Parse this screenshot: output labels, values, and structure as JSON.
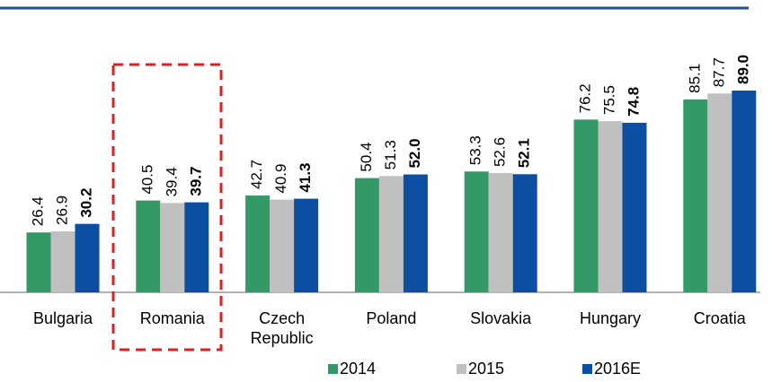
{
  "chart_data": {
    "type": "bar",
    "categories": [
      "Bulgaria",
      "Romania",
      "Czech Republic",
      "Poland",
      "Slovakia",
      "Hungary",
      "Croatia"
    ],
    "series": [
      {
        "name": "2014",
        "color": "#339966",
        "values": [
          26.4,
          40.5,
          42.7,
          50.4,
          53.3,
          76.2,
          85.1
        ],
        "value_labels": [
          "26.4",
          "40.5",
          "42.7",
          "50.4",
          "53.3",
          "76.2",
          "85.1"
        ]
      },
      {
        "name": "2015",
        "color": "#c0c0c0",
        "values": [
          26.9,
          39.4,
          40.9,
          51.3,
          52.6,
          75.5,
          87.7
        ],
        "value_labels": [
          "26.9",
          "39.4",
          "40.9",
          "51.3",
          "52.6",
          "75.5",
          "87.7"
        ]
      },
      {
        "name": "2016E",
        "color": "#0b4ea2",
        "values": [
          30.2,
          39.7,
          41.3,
          52.0,
          52.1,
          74.8,
          89.0
        ],
        "value_labels": [
          "30.2",
          "39.7",
          "41.3",
          "52.0",
          "52.1",
          "74.8",
          "89.0"
        ]
      }
    ]
  }
}
